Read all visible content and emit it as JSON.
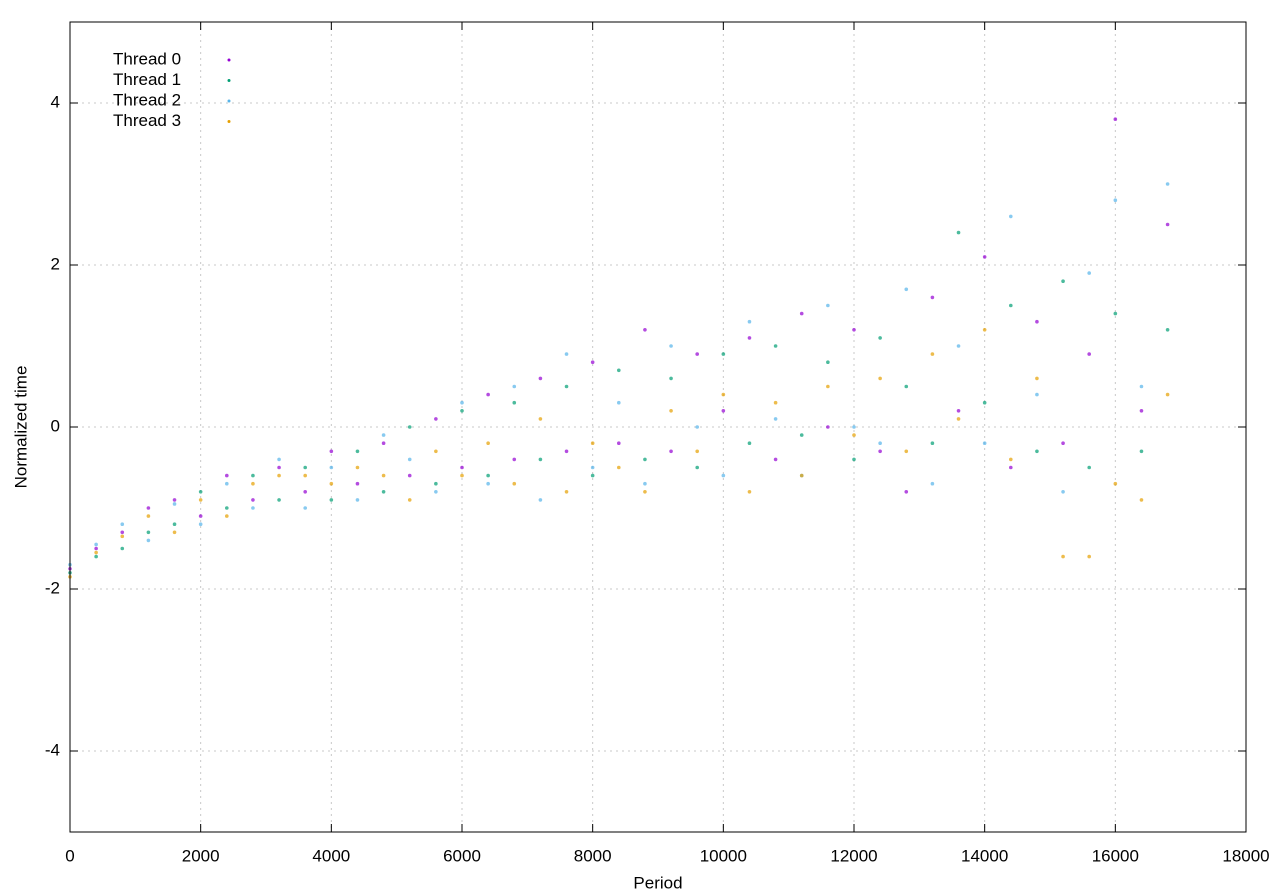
{
  "chart_data": {
    "type": "scatter",
    "x_label": "Period",
    "y_label": "Normalized time",
    "xlim": [
      0,
      18000
    ],
    "ylim": [
      -5,
      5
    ],
    "xticks": [
      0,
      2000,
      4000,
      6000,
      8000,
      10000,
      12000,
      14000,
      16000,
      18000
    ],
    "yticks": [
      -4,
      -2,
      0,
      2,
      4
    ],
    "grid": true,
    "legend": "top-left",
    "series": [
      {
        "name": "Thread 0",
        "color": "#9400d3",
        "x": [
          0,
          400,
          800,
          1200,
          1600,
          2000,
          2400,
          2800,
          3200,
          3600,
          4000,
          4400,
          4800,
          5200,
          5600,
          6000,
          6400,
          6800,
          7200,
          7600,
          8000,
          8400,
          8800,
          9200,
          9600,
          10000,
          10400,
          10800,
          11200,
          11600,
          12000,
          12400,
          12800,
          13200,
          13600,
          14000,
          14400,
          14800,
          15200,
          15600,
          16000,
          16400,
          16800
        ],
        "values": [
          -1.75,
          -1.5,
          -1.3,
          -1.0,
          -0.9,
          -1.1,
          -0.6,
          -0.9,
          -0.5,
          -0.8,
          -0.3,
          -0.7,
          -0.2,
          -0.6,
          0.1,
          -0.5,
          0.4,
          -0.4,
          0.6,
          -0.3,
          0.8,
          -0.2,
          1.2,
          -0.3,
          0.9,
          0.2,
          1.1,
          -0.4,
          1.4,
          0.0,
          1.2,
          -0.3,
          -0.8,
          1.6,
          0.2,
          2.1,
          -0.5,
          1.3,
          -0.2,
          0.9,
          3.8,
          0.2,
          2.5
        ]
      },
      {
        "name": "Thread 1",
        "color": "#009e73",
        "x": [
          0,
          400,
          800,
          1200,
          1600,
          2000,
          2400,
          2800,
          3200,
          3600,
          4000,
          4400,
          4800,
          5200,
          5600,
          6000,
          6400,
          6800,
          7200,
          7600,
          8000,
          8400,
          8800,
          9200,
          9600,
          10000,
          10400,
          10800,
          11200,
          11600,
          12000,
          12400,
          12800,
          13200,
          13600,
          14000,
          14400,
          14800,
          15200,
          15600,
          16000,
          16400,
          16800
        ],
        "values": [
          -1.8,
          -1.6,
          -1.5,
          -1.3,
          -1.2,
          -0.8,
          -1.0,
          -0.6,
          -0.9,
          -0.5,
          -0.9,
          -0.3,
          -0.8,
          0.0,
          -0.7,
          0.2,
          -0.6,
          0.3,
          -0.4,
          0.5,
          -0.6,
          0.7,
          -0.4,
          0.6,
          -0.5,
          0.9,
          -0.2,
          1.0,
          -0.1,
          0.8,
          -0.4,
          1.1,
          0.5,
          -0.2,
          2.4,
          0.3,
          1.5,
          -0.3,
          1.8,
          -0.5,
          1.4,
          -0.3,
          1.2
        ]
      },
      {
        "name": "Thread 2",
        "color": "#56b4e9",
        "x": [
          0,
          400,
          800,
          1200,
          1600,
          2000,
          2400,
          2800,
          3200,
          3600,
          4000,
          4400,
          4800,
          5200,
          5600,
          6000,
          6400,
          6800,
          7200,
          7600,
          8000,
          8400,
          8800,
          9200,
          9600,
          10000,
          10400,
          10800,
          11200,
          11600,
          12000,
          12400,
          12800,
          13200,
          13600,
          14000,
          14400,
          14800,
          15200,
          15600,
          16000,
          16400,
          16800
        ],
        "values": [
          -1.7,
          -1.45,
          -1.2,
          -1.4,
          -0.95,
          -1.2,
          -0.7,
          -1.0,
          -0.4,
          -1.0,
          -0.5,
          -0.9,
          -0.1,
          -0.4,
          -0.8,
          0.3,
          -0.7,
          0.5,
          -0.9,
          0.9,
          -0.5,
          0.3,
          -0.7,
          1.0,
          0.0,
          -0.6,
          1.3,
          0.1,
          -0.6,
          1.5,
          0.0,
          -0.2,
          1.7,
          -0.7,
          1.0,
          -0.2,
          2.6,
          0.4,
          -0.8,
          1.9,
          2.8,
          0.5,
          3.0
        ]
      },
      {
        "name": "Thread 3",
        "color": "#e69f00",
        "x": [
          0,
          400,
          800,
          1200,
          1600,
          2000,
          2400,
          2800,
          3200,
          3600,
          4000,
          4400,
          4800,
          5200,
          5600,
          6000,
          6400,
          6800,
          7200,
          7600,
          8000,
          8400,
          8800,
          9200,
          9600,
          10000,
          10400,
          10800,
          11200,
          11600,
          12000,
          12400,
          12800,
          13200,
          13600,
          14000,
          14400,
          14800,
          15200,
          15600,
          16000,
          16400,
          16800
        ],
        "values": [
          -1.85,
          -1.55,
          -1.35,
          -1.1,
          -1.3,
          -0.9,
          -1.1,
          -0.7,
          -0.6,
          -0.6,
          -0.7,
          -0.5,
          -0.6,
          -0.9,
          -0.3,
          -0.6,
          -0.2,
          -0.7,
          0.1,
          -0.8,
          -0.2,
          -0.5,
          -0.8,
          0.2,
          -0.3,
          0.4,
          -0.8,
          0.3,
          -0.6,
          0.5,
          -0.1,
          0.6,
          -0.3,
          0.9,
          0.1,
          1.2,
          -0.4,
          0.6,
          -1.6,
          -1.6,
          -0.7,
          -0.9,
          0.4
        ]
      }
    ]
  }
}
